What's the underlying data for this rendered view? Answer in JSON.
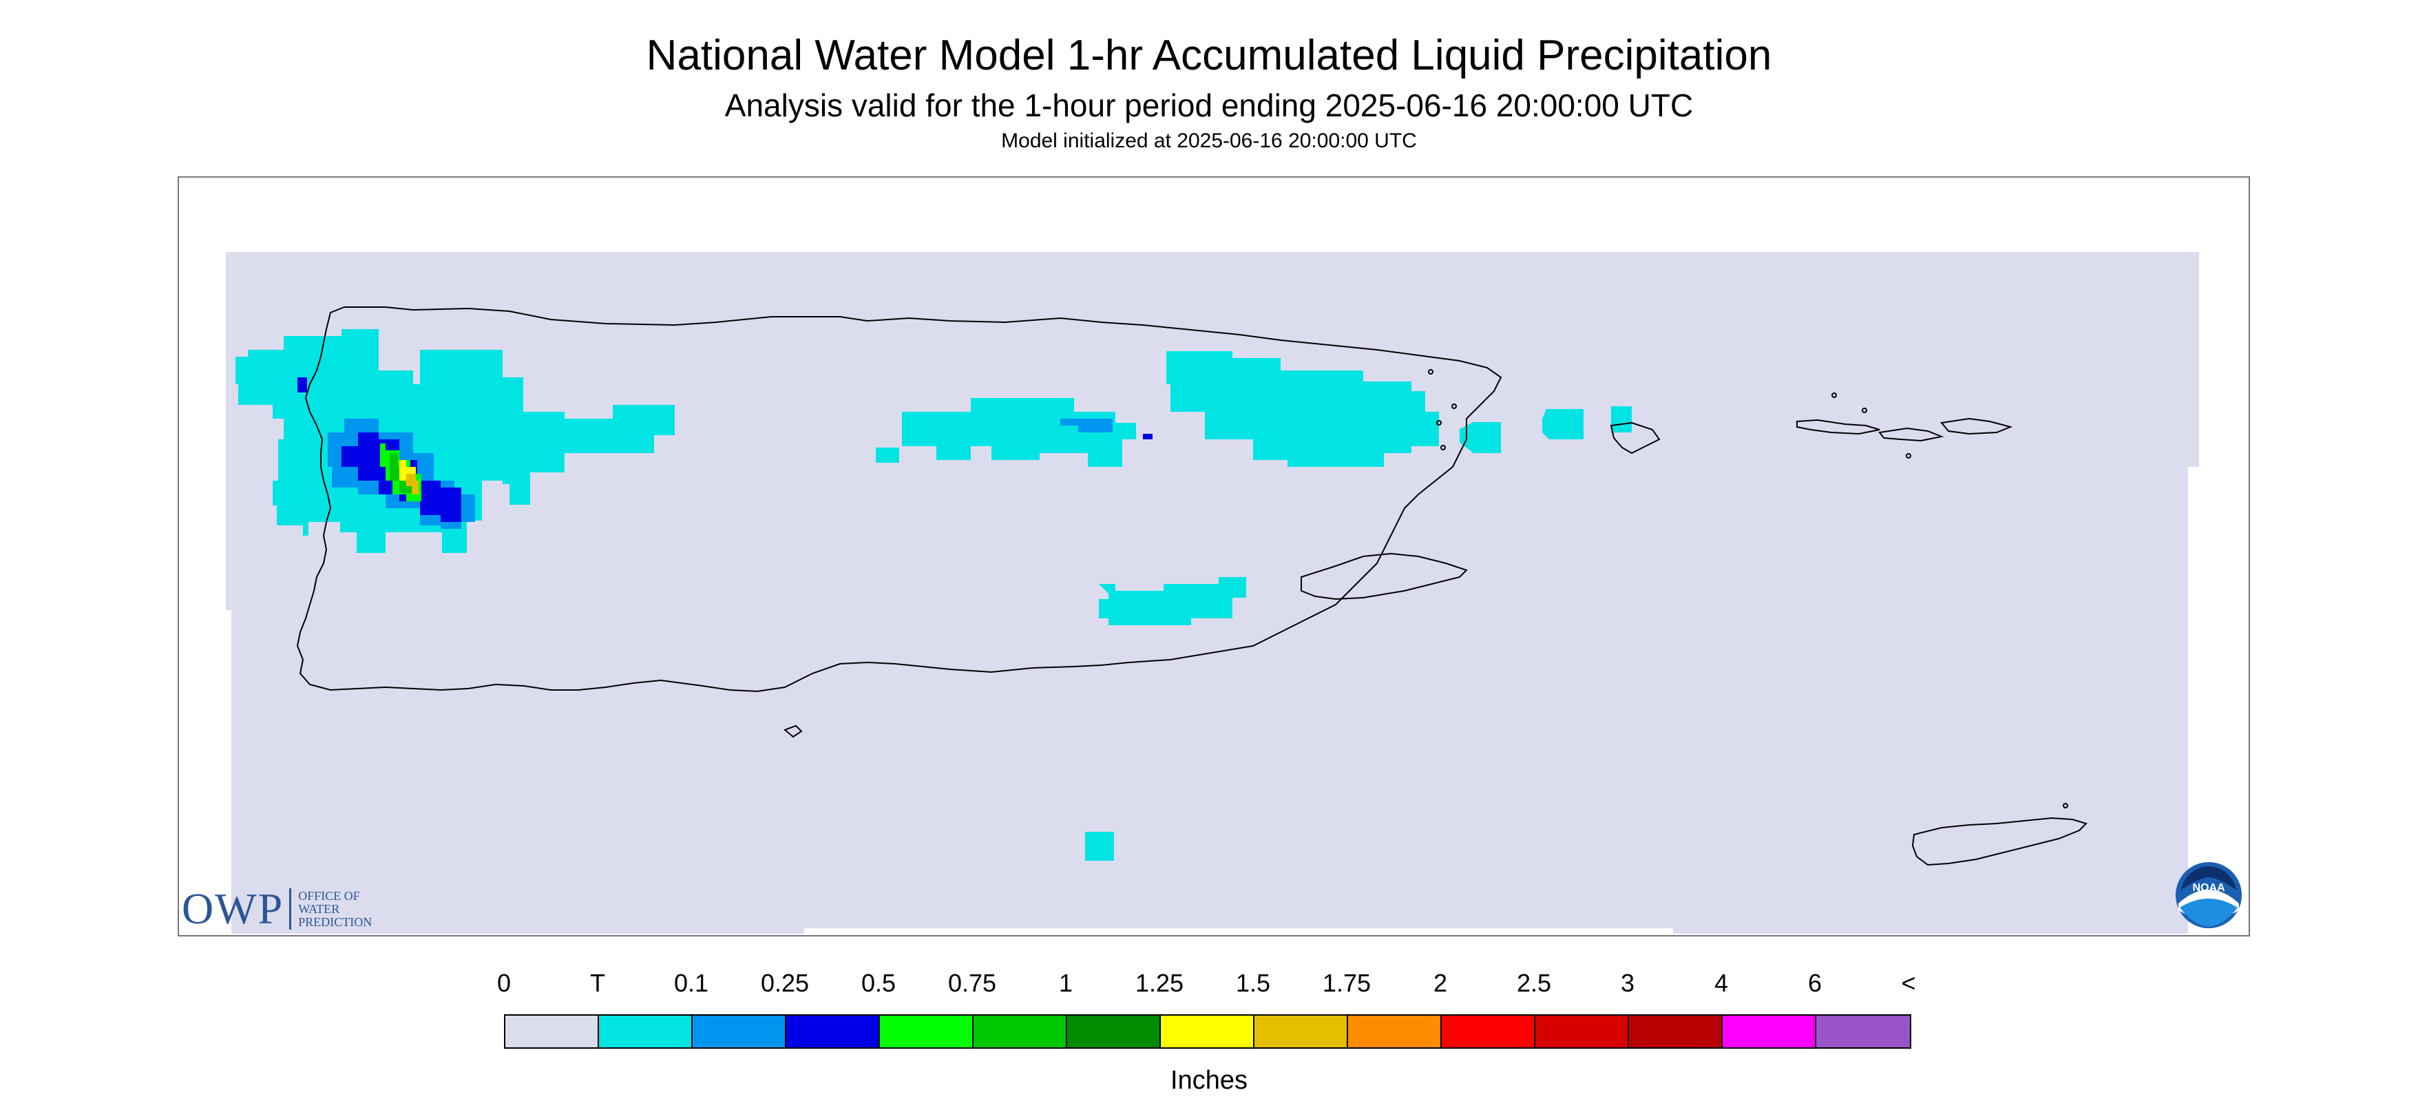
{
  "title": "National Water Model 1-hr Accumulated Liquid Precipitation",
  "subtitle": "Analysis valid for the 1-hour period ending 2025-06-16 20:00:00 UTC",
  "init_text": "Model initialized at 2025-06-16 20:00:00 UTC",
  "logos": {
    "owp_big": "OWP",
    "owp_line1": "Office of",
    "owp_line2": "Water",
    "owp_line3": "Prediction",
    "noaa": "NOAA"
  },
  "colors": {
    "nodata_background": "#dcdcef",
    "coast_line": "#000000",
    "trace": "#00e4e4",
    "light_blue": "#0096f0",
    "blue": "#0000e6",
    "green": "#00f000",
    "mid_green": "#00c000",
    "yellow": "#ffff00",
    "gold": "#e6be00"
  },
  "legend": {
    "ticks": [
      "0",
      "T",
      "0.1",
      "0.25",
      "0.5",
      "0.75",
      "1",
      "1.25",
      "1.5",
      "1.75",
      "2",
      "2.5",
      "3",
      "4",
      "6",
      "<"
    ],
    "colors": [
      "#dcdcef",
      "#00e4e4",
      "#0096f0",
      "#0000e6",
      "#00ff00",
      "#00c800",
      "#008c00",
      "#ffff00",
      "#e6be00",
      "#ff8c00",
      "#ff0000",
      "#d70000",
      "#b90000",
      "#ff00ff",
      "#9955c8"
    ],
    "units": "Inches"
  }
}
